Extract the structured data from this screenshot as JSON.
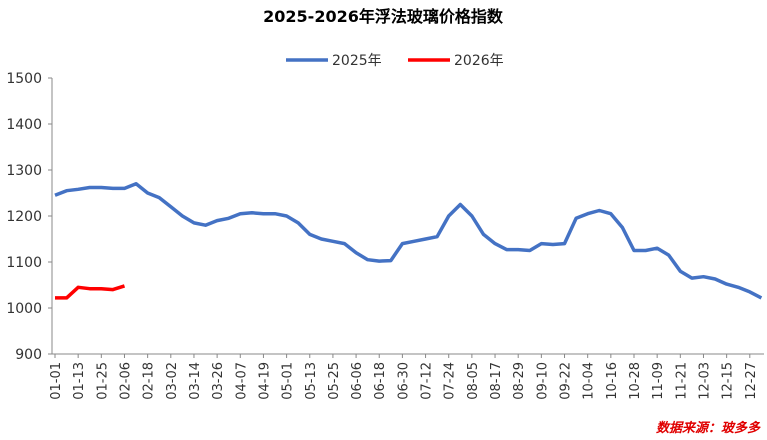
{
  "chart_data": {
    "type": "line",
    "title": "2025-2026年浮法玻璃价格指数",
    "categories": [
      "01-01",
      null,
      "01-13",
      null,
      "01-25",
      null,
      "02-06",
      null,
      "02-18",
      null,
      "03-02",
      null,
      "03-14",
      null,
      "03-26",
      null,
      "04-07",
      null,
      "04-19",
      null,
      "05-01",
      null,
      "05-13",
      null,
      "05-25",
      null,
      "06-06",
      null,
      "06-18",
      null,
      "06-30",
      null,
      "07-12",
      null,
      "07-24",
      null,
      "08-05",
      null,
      "08-17",
      null,
      "08-29",
      null,
      "09-10",
      null,
      "09-22",
      null,
      "10-04",
      null,
      "10-16",
      null,
      "10-28",
      null,
      "11-09",
      null,
      "11-21",
      null,
      "12-03",
      null,
      "12-15",
      null,
      "12-27",
      null
    ],
    "series": [
      {
        "name": "2025年",
        "color": "#4472c4",
        "values": [
          1245,
          1255,
          1258,
          1262,
          1262,
          1260,
          1260,
          1270,
          1250,
          1240,
          1220,
          1200,
          1185,
          1180,
          1190,
          1195,
          1205,
          1207,
          1205,
          1205,
          1200,
          1185,
          1160,
          1150,
          1145,
          1140,
          1120,
          1105,
          1102,
          1103,
          1140,
          1145,
          1150,
          1155,
          1200,
          1225,
          1200,
          1160,
          1140,
          1127,
          1127,
          1125,
          1140,
          1138,
          1140,
          1195,
          1205,
          1212,
          1205,
          1175,
          1125,
          1125,
          1130,
          1115,
          1080,
          1065,
          1068,
          1063,
          1052,
          1045,
          1035,
          1022
        ]
      },
      {
        "name": "2026年",
        "color": "#ff0000",
        "values": [
          1022,
          1022,
          1045,
          1042,
          1042,
          1040,
          1048,
          null,
          null,
          null,
          null,
          null,
          null,
          null,
          null,
          null,
          null,
          null,
          null,
          null,
          null,
          null,
          null,
          null,
          null,
          null,
          null,
          null,
          null,
          null,
          null,
          null,
          null,
          null,
          null,
          null,
          null,
          null,
          null,
          null,
          null,
          null,
          null,
          null,
          null,
          null,
          null,
          null,
          null,
          null,
          null,
          null,
          null,
          null,
          null,
          null,
          null,
          null,
          null,
          null,
          null,
          null
        ]
      }
    ],
    "ylim": [
      900,
      1500
    ],
    "yticks": [
      900,
      1000,
      1100,
      1200,
      1300,
      1400,
      1500
    ],
    "legend": "top",
    "source": "数据来源：玻多多"
  }
}
